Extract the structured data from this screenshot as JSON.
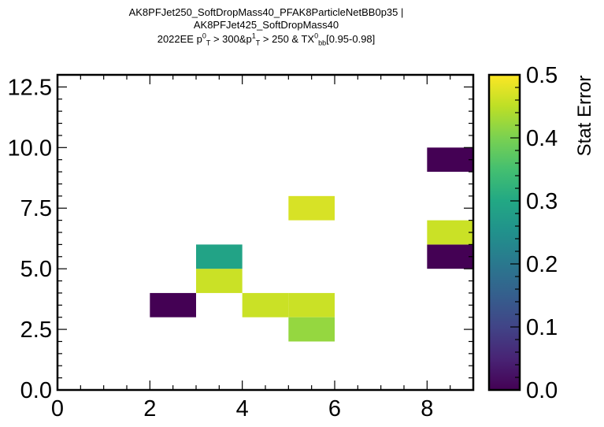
{
  "chart_data": {
    "type": "heatmap",
    "title_lines": [
      "AK8PFJet250_SoftDropMass40_PFAK8ParticleNetBB0p35 |",
      "AK8PFJet425_SoftDropMass40"
    ],
    "title_selection": {
      "era": "2022EE",
      "cut1_var": "p",
      "cut1_sup": "0",
      "cut1_sub": "T",
      "cut1_text": " > 300&",
      "cut2_var": "p",
      "cut2_sup": "1",
      "cut2_sub": "T",
      "cut2_text": " > 250 & TX",
      "cut3_sup": "0",
      "cut3_sub": "bb",
      "cut3_text": "[0.95-0.98]"
    },
    "xlim": [
      0,
      9
    ],
    "ylim": [
      0,
      13
    ],
    "x_ticks": [
      "0",
      "2",
      "4",
      "6",
      "8"
    ],
    "x_tick_values": [
      0,
      2,
      4,
      6,
      8
    ],
    "y_ticks": [
      "0.0",
      "2.5",
      "5.0",
      "7.5",
      "10.0",
      "12.5"
    ],
    "y_tick_values": [
      0,
      2.5,
      5,
      7.5,
      10,
      12.5
    ],
    "colorbar": {
      "label": "Stat Error",
      "range": [
        0,
        0.5
      ],
      "ticks": [
        "0.0",
        "0.1",
        "0.2",
        "0.3",
        "0.4",
        "0.5"
      ],
      "tick_values": [
        0,
        0.1,
        0.2,
        0.3,
        0.4,
        0.5
      ],
      "colormap": "viridis"
    },
    "cells": [
      {
        "x0": 2,
        "x1": 3,
        "y0": 3,
        "y1": 4,
        "value": 0.0
      },
      {
        "x0": 3,
        "x1": 4,
        "y0": 4,
        "y1": 5,
        "value": 0.46
      },
      {
        "x0": 3,
        "x1": 4,
        "y0": 5,
        "y1": 6,
        "value": 0.29
      },
      {
        "x0": 4,
        "x1": 5,
        "y0": 3,
        "y1": 4,
        "value": 0.46
      },
      {
        "x0": 5,
        "x1": 6,
        "y0": 3,
        "y1": 4,
        "value": 0.46
      },
      {
        "x0": 5,
        "x1": 6,
        "y0": 2,
        "y1": 3,
        "value": 0.42
      },
      {
        "x0": 5,
        "x1": 6,
        "y0": 7,
        "y1": 8,
        "value": 0.47
      },
      {
        "x0": 8,
        "x1": 9,
        "y0": 5,
        "y1": 6,
        "value": 0.0
      },
      {
        "x0": 8,
        "x1": 9,
        "y0": 6,
        "y1": 7,
        "value": 0.46
      },
      {
        "x0": 8,
        "x1": 9,
        "y0": 9,
        "y1": 10,
        "value": 0.0
      }
    ]
  }
}
